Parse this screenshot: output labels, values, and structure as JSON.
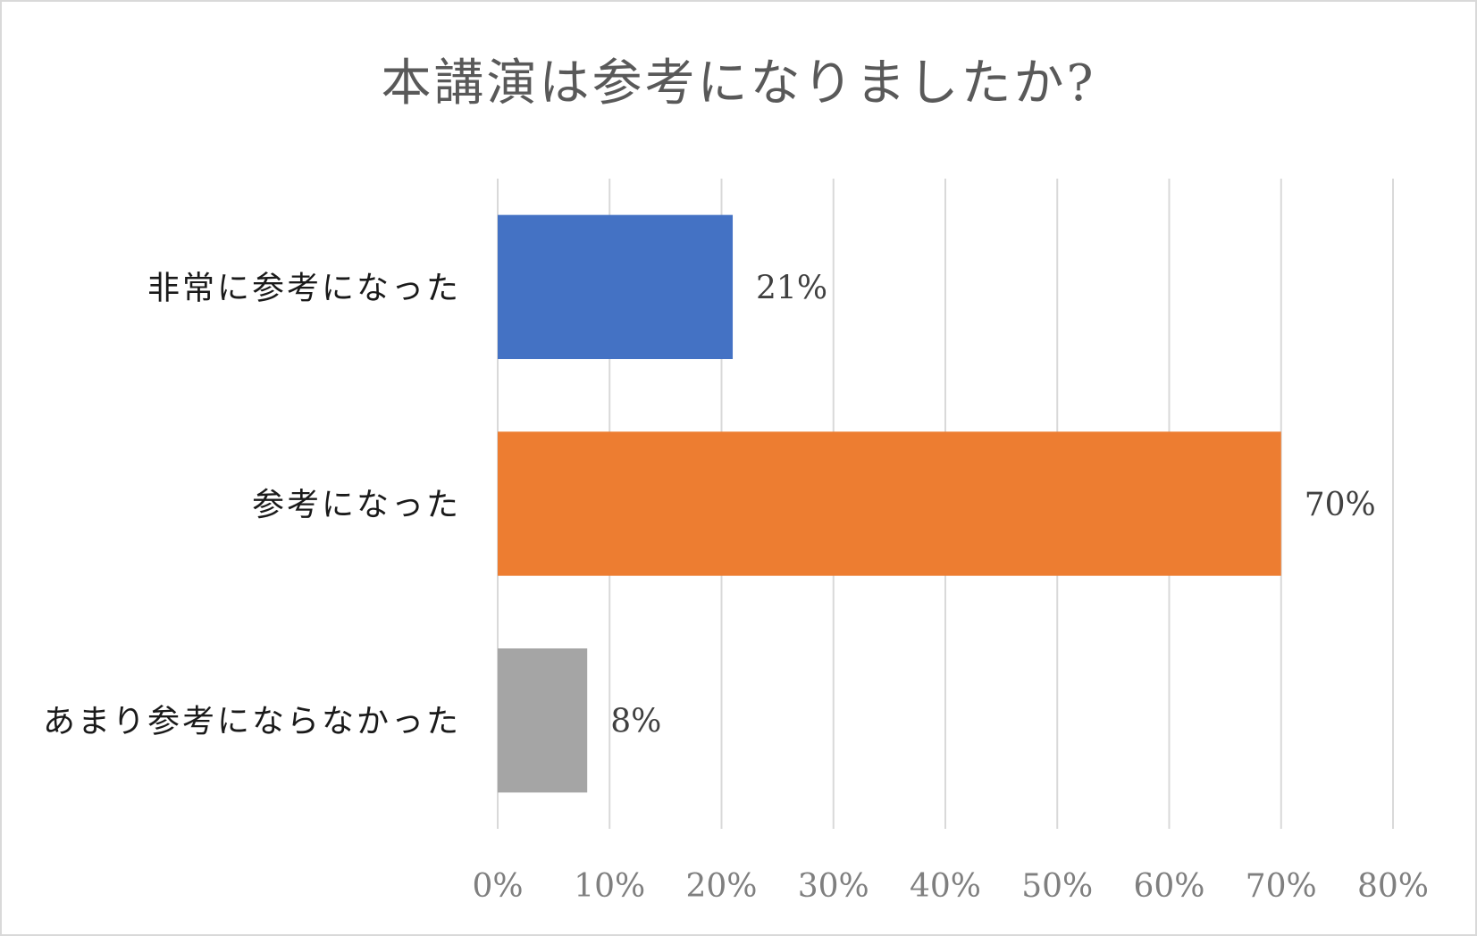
{
  "chart_data": {
    "type": "bar",
    "orientation": "horizontal",
    "title": "本講演は参考になりましたか?",
    "categories": [
      "非常に参考になった",
      "参考になった",
      "あまり参考にならなかった"
    ],
    "values": [
      21,
      70,
      8
    ],
    "data_labels": [
      "21%",
      "70%",
      "8%"
    ],
    "colors": [
      "#4472c4",
      "#ed7d31",
      "#a5a5a5"
    ],
    "xlim": [
      0,
      80
    ],
    "xticks": [
      0,
      10,
      20,
      30,
      40,
      50,
      60,
      70,
      80
    ],
    "xtick_labels": [
      "0%",
      "10%",
      "20%",
      "30%",
      "40%",
      "50%",
      "60%",
      "70%",
      "80%"
    ],
    "xlabel": "",
    "ylabel": "",
    "grid": "vertical",
    "legend": "none"
  }
}
